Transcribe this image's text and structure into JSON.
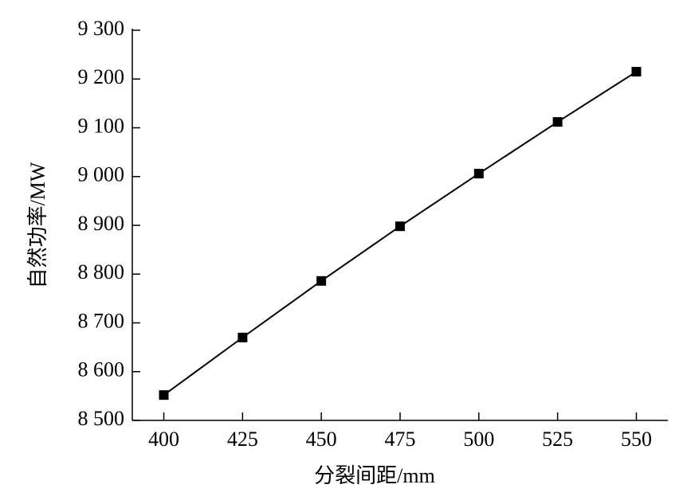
{
  "chart_data": {
    "type": "line",
    "x_label": "分裂间距/mm",
    "y_label": "自然功率/MW",
    "x": [
      400,
      425,
      450,
      475,
      500,
      525,
      550
    ],
    "series": [
      {
        "color": "#000000",
        "values": [
          8552,
          8670,
          8786,
          8898,
          9006,
          9112,
          9215
        ]
      }
    ],
    "xlim": [
      390,
      560
    ],
    "xticks": [
      400,
      425,
      450,
      475,
      500,
      525,
      550
    ],
    "ylim": [
      8500,
      9300
    ],
    "yticks": [
      {
        "value": 8500,
        "label": "8 500"
      },
      {
        "value": 8600,
        "label": "8 600"
      },
      {
        "value": 8700,
        "label": "8 700"
      },
      {
        "value": 8800,
        "label": "8 800"
      },
      {
        "value": 8900,
        "label": "8 900"
      },
      {
        "value": 9000,
        "label": "9 000"
      },
      {
        "value": 9100,
        "label": "9 100"
      },
      {
        "value": 9200,
        "label": "9 200"
      },
      {
        "value": 9300,
        "label": "9 300"
      }
    ],
    "marker": "square"
  }
}
